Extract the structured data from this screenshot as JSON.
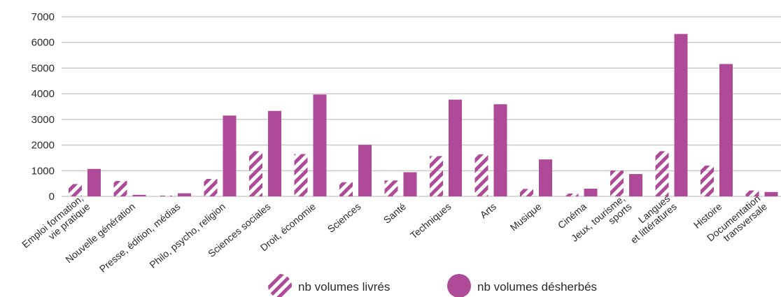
{
  "chart_data": {
    "type": "bar",
    "categories": [
      [
        "Emploi formation,",
        "vie pratique"
      ],
      [
        "Nouvelle génération"
      ],
      [
        "Presse, édition, médias"
      ],
      [
        "Philo, psycho, religion"
      ],
      [
        "Sciences sociales"
      ],
      [
        "Droit, économie"
      ],
      [
        "Sciences"
      ],
      [
        "Santé"
      ],
      [
        "Techniques"
      ],
      [
        "Arts"
      ],
      [
        "Musique"
      ],
      [
        "Cinéma"
      ],
      [
        "Jeux, tourisme,",
        "sports"
      ],
      [
        "Langues",
        "et littératures"
      ],
      [
        "Histoire"
      ],
      [
        "Documentation",
        "transversale"
      ]
    ],
    "series": [
      {
        "name": "nb volumes livrés",
        "pattern": "hatched",
        "color": "#ae4a97",
        "values": [
          480,
          600,
          30,
          680,
          1760,
          1650,
          550,
          620,
          1570,
          1640,
          290,
          110,
          1010,
          1760,
          1200,
          230
        ]
      },
      {
        "name": "nb volumes désherbés",
        "pattern": "solid",
        "color": "#ae4a97",
        "values": [
          1070,
          60,
          120,
          3150,
          3330,
          3970,
          2010,
          940,
          3770,
          3590,
          1440,
          300,
          870,
          6330,
          5160,
          170
        ]
      }
    ],
    "y_ticks": [
      "0",
      "1000",
      "2000",
      "3000",
      "4000",
      "5000",
      "6000",
      "7000"
    ],
    "ylim": [
      0,
      7000
    ],
    "grid": true,
    "legend_position": "bottom-center",
    "title": "",
    "xlabel": "",
    "ylabel": ""
  }
}
